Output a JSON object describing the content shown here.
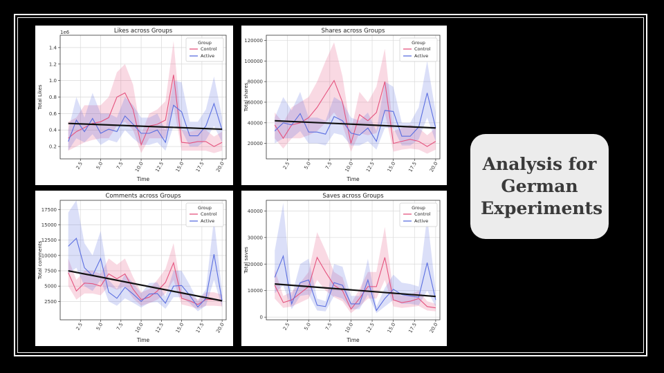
{
  "slide": {
    "title": "Analysis for\nGerman\nExperiments"
  },
  "colors": {
    "control": "#e5537e",
    "active": "#5a6ee0",
    "trend": "#111111"
  },
  "chart_data": [
    {
      "type": "line",
      "title": "Likes across Groups",
      "xlabel": "Time",
      "ylabel": "Total Likes",
      "offset_label": "1e6",
      "xlim": [
        0,
        20.5
      ],
      "ylim": [
        0.05,
        1.55
      ],
      "xticks": [
        2.5,
        5.0,
        7.5,
        10.0,
        12.5,
        15.0,
        17.5,
        20.0
      ],
      "xtick_labels": [
        "2.5",
        "5.0",
        "7.5",
        "10.0",
        "12.5",
        "15.0",
        "17.5",
        "20.0"
      ],
      "yticks": [
        0.2,
        0.4,
        0.6,
        0.8,
        1.0,
        1.2,
        1.4
      ],
      "ytick_labels": [
        "0.2",
        "0.4",
        "0.6",
        "0.8",
        "1.0",
        "1.2",
        "1.4"
      ],
      "grid": true,
      "legend": {
        "title": "Group",
        "position": "top-right"
      },
      "x": [
        1,
        2,
        3,
        4,
        5,
        6,
        7,
        8,
        9,
        10,
        11,
        12,
        13,
        14,
        15,
        16,
        17,
        18,
        19,
        20
      ],
      "series": [
        {
          "name": "Control",
          "color": "#e5537e",
          "values": [
            0.3,
            0.38,
            0.43,
            0.48,
            0.5,
            0.55,
            0.8,
            0.85,
            0.65,
            0.22,
            0.45,
            0.47,
            0.52,
            1.07,
            0.25,
            0.24,
            0.26,
            0.26,
            0.2,
            0.25
          ],
          "lower": [
            0.15,
            0.2,
            0.25,
            0.28,
            0.3,
            0.3,
            0.45,
            0.5,
            0.4,
            0.12,
            0.3,
            0.3,
            0.3,
            0.7,
            0.15,
            0.15,
            0.15,
            0.15,
            0.12,
            0.15
          ],
          "upper": [
            0.5,
            0.55,
            0.7,
            0.7,
            0.7,
            0.8,
            1.1,
            1.2,
            0.95,
            0.35,
            0.6,
            0.65,
            0.75,
            1.48,
            0.4,
            0.38,
            0.4,
            0.4,
            0.32,
            0.38
          ]
        },
        {
          "name": "Active",
          "color": "#5a6ee0",
          "values": [
            0.26,
            0.52,
            0.38,
            0.54,
            0.36,
            0.41,
            0.38,
            0.57,
            0.47,
            0.36,
            0.36,
            0.4,
            0.25,
            0.7,
            0.62,
            0.33,
            0.33,
            0.45,
            0.72,
            0.4
          ],
          "lower": [
            0.15,
            0.3,
            0.25,
            0.35,
            0.22,
            0.28,
            0.25,
            0.4,
            0.3,
            0.22,
            0.22,
            0.25,
            0.15,
            0.45,
            0.4,
            0.2,
            0.2,
            0.28,
            0.45,
            0.25
          ],
          "upper": [
            0.4,
            0.8,
            0.55,
            0.85,
            0.6,
            0.6,
            0.55,
            0.8,
            0.7,
            0.55,
            0.55,
            0.6,
            0.4,
            1.0,
            0.98,
            0.5,
            0.5,
            0.65,
            1.05,
            0.55
          ]
        }
      ],
      "trend": {
        "color": "#111111",
        "from": [
          1,
          0.48
        ],
        "to": [
          20,
          0.41
        ]
      }
    },
    {
      "type": "line",
      "title": "Shares across Groups",
      "xlabel": "Time",
      "ylabel": "Total shares",
      "offset_label": "",
      "xlim": [
        0,
        20.5
      ],
      "ylim": [
        5000,
        125000
      ],
      "xticks": [
        2.5,
        5.0,
        7.5,
        10.0,
        12.5,
        15.0,
        17.5,
        20.0
      ],
      "xtick_labels": [
        "2.5",
        "5.0",
        "7.5",
        "10.0",
        "12.5",
        "15.0",
        "17.5",
        "20.0"
      ],
      "yticks": [
        20000,
        40000,
        60000,
        80000,
        100000,
        120000
      ],
      "ytick_labels": [
        "20000",
        "40000",
        "60000",
        "80000",
        "100000",
        "120000"
      ],
      "grid": true,
      "legend": {
        "title": "Group",
        "position": "top-right"
      },
      "x": [
        1,
        2,
        3,
        4,
        5,
        6,
        7,
        8,
        9,
        10,
        11,
        12,
        13,
        14,
        15,
        16,
        17,
        18,
        19,
        20
      ],
      "series": [
        {
          "name": "Control",
          "color": "#e5537e",
          "values": [
            38000,
            25000,
            38000,
            40000,
            45000,
            55000,
            68000,
            81000,
            60000,
            20000,
            48000,
            42000,
            50000,
            80000,
            20000,
            22000,
            24000,
            22000,
            17000,
            22000
          ],
          "lower": [
            25000,
            15000,
            25000,
            25000,
            28000,
            32000,
            40000,
            50000,
            38000,
            12000,
            30000,
            28000,
            30000,
            50000,
            12000,
            14000,
            15000,
            14000,
            10000,
            14000
          ],
          "upper": [
            50000,
            40000,
            55000,
            60000,
            65000,
            80000,
            100000,
            118000,
            85000,
            32000,
            70000,
            60000,
            75000,
            112000,
            32000,
            35000,
            38000,
            35000,
            28000,
            35000
          ]
        },
        {
          "name": "Active",
          "color": "#5a6ee0",
          "values": [
            32000,
            40000,
            38000,
            49000,
            31000,
            31000,
            29000,
            46000,
            42000,
            30000,
            28000,
            35000,
            22000,
            52000,
            51000,
            27000,
            27000,
            36000,
            69000,
            35000
          ],
          "lower": [
            20000,
            25000,
            25000,
            32000,
            20000,
            20000,
            18000,
            30000,
            28000,
            18000,
            18000,
            22000,
            14000,
            35000,
            35000,
            18000,
            18000,
            24000,
            45000,
            22000
          ],
          "upper": [
            45000,
            65000,
            52000,
            70000,
            45000,
            45000,
            42000,
            65000,
            60000,
            45000,
            42000,
            50000,
            32000,
            80000,
            75000,
            40000,
            40000,
            55000,
            100000,
            50000
          ]
        }
      ],
      "trend": {
        "color": "#111111",
        "from": [
          1,
          42000
        ],
        "to": [
          20,
          35000
        ]
      }
    },
    {
      "type": "line",
      "title": "Comments across Groups",
      "xlabel": "Time",
      "ylabel": "Total comments",
      "offset_label": "",
      "xlim": [
        0,
        20.5
      ],
      "ylim": [
        -500,
        19000
      ],
      "xticks": [
        2.5,
        5.0,
        7.5,
        10.0,
        12.5,
        15.0,
        17.5,
        20.0
      ],
      "xtick_labels": [
        "2.5",
        "5.0",
        "7.5",
        "10.0",
        "12.5",
        "15.0",
        "17.5",
        "20.0"
      ],
      "yticks": [
        2500,
        5000,
        7500,
        10000,
        12500,
        15000,
        17500
      ],
      "ytick_labels": [
        "2500",
        "5000",
        "7500",
        "10000",
        "12500",
        "15000",
        "17500"
      ],
      "grid": true,
      "legend": {
        "title": "Group",
        "position": "top-right"
      },
      "x": [
        1,
        2,
        3,
        4,
        5,
        6,
        7,
        8,
        9,
        10,
        11,
        12,
        13,
        14,
        15,
        16,
        17,
        18,
        19,
        20
      ],
      "series": [
        {
          "name": "Control",
          "color": "#e5537e",
          "values": [
            7200,
            4200,
            5500,
            5400,
            5000,
            7000,
            6200,
            7000,
            4500,
            2800,
            3200,
            4200,
            5600,
            8800,
            3000,
            2600,
            2000,
            2800,
            2800,
            2600
          ],
          "lower": [
            5000,
            2800,
            3800,
            3800,
            3500,
            5000,
            4400,
            5000,
            3000,
            1800,
            2200,
            2800,
            3800,
            6000,
            2000,
            1700,
            1300,
            1800,
            1800,
            1700
          ],
          "upper": [
            9500,
            6000,
            7500,
            7500,
            7000,
            9500,
            8500,
            9500,
            6500,
            4000,
            4500,
            6000,
            7800,
            12000,
            4200,
            3600,
            2800,
            4000,
            4000,
            3600
          ]
        },
        {
          "name": "Active",
          "color": "#5a6ee0",
          "values": [
            11500,
            12800,
            8000,
            6700,
            9500,
            4000,
            3000,
            4800,
            3700,
            2500,
            3700,
            3800,
            2200,
            5000,
            5100,
            3500,
            1600,
            3000,
            10200,
            2600
          ],
          "lower": [
            7000,
            8000,
            5000,
            4200,
            6000,
            2500,
            1800,
            3000,
            2300,
            1500,
            2300,
            2400,
            1300,
            3200,
            3200,
            2200,
            900,
            1800,
            6000,
            1600
          ],
          "upper": [
            17000,
            19000,
            12000,
            10000,
            14000,
            6000,
            4500,
            7000,
            5500,
            3800,
            5500,
            5600,
            3300,
            7500,
            7500,
            5200,
            2500,
            4500,
            16000,
            4000
          ]
        }
      ],
      "trend": {
        "color": "#111111",
        "from": [
          1,
          7500
        ],
        "to": [
          20,
          2600
        ]
      }
    },
    {
      "type": "line",
      "title": "Saves across Groups",
      "xlabel": "Time",
      "ylabel": "Total saves",
      "offset_label": "",
      "xlim": [
        0,
        20.5
      ],
      "ylim": [
        -1000,
        44000
      ],
      "xticks": [
        2.5,
        5.0,
        7.5,
        10.0,
        12.5,
        15.0,
        17.5,
        20.0
      ],
      "xtick_labels": [
        "2.5",
        "5.0",
        "7.5",
        "10.0",
        "12.5",
        "15.0",
        "17.5",
        "20.0"
      ],
      "yticks": [
        0,
        10000,
        20000,
        30000,
        40000
      ],
      "ytick_labels": [
        "0",
        "10000",
        "20000",
        "30000",
        "40000"
      ],
      "grid": true,
      "legend": {
        "title": "Group",
        "position": "top-right"
      },
      "x": [
        1,
        2,
        3,
        4,
        5,
        6,
        7,
        8,
        9,
        10,
        11,
        12,
        13,
        14,
        15,
        16,
        17,
        18,
        19,
        20
      ],
      "series": [
        {
          "name": "Control",
          "color": "#e5537e",
          "values": [
            12000,
            5500,
            6500,
            9000,
            11500,
            22500,
            17000,
            12000,
            10000,
            3000,
            7000,
            11500,
            11500,
            22500,
            6500,
            5500,
            6000,
            7000,
            4000,
            3500
          ],
          "lower": [
            7000,
            3500,
            4000,
            5500,
            7000,
            14000,
            10000,
            7500,
            6000,
            1500,
            4000,
            7000,
            7000,
            14000,
            4000,
            3500,
            3800,
            4200,
            2500,
            2200
          ],
          "upper": [
            18000,
            8000,
            9500,
            13000,
            17000,
            32000,
            25000,
            17000,
            15000,
            5000,
            10500,
            17000,
            17000,
            34000,
            9500,
            8000,
            8500,
            10000,
            6000,
            5000
          ]
        },
        {
          "name": "Active",
          "color": "#5a6ee0",
          "values": [
            15000,
            23000,
            5000,
            13000,
            14000,
            4500,
            4000,
            13000,
            12000,
            5000,
            5000,
            14000,
            2500,
            7000,
            10500,
            8500,
            8000,
            7500,
            20500,
            6500
          ],
          "lower": [
            9000,
            12000,
            3000,
            8000,
            8500,
            2500,
            2200,
            8000,
            7000,
            3000,
            3000,
            8500,
            1500,
            4000,
            6500,
            5000,
            5000,
            4500,
            10000,
            4000
          ],
          "upper": [
            25000,
            43000,
            8000,
            20000,
            22000,
            7000,
            6000,
            20000,
            19000,
            8000,
            8000,
            22000,
            4000,
            11000,
            16000,
            13000,
            12500,
            11500,
            38000,
            10000
          ]
        }
      ],
      "trend": {
        "color": "#111111",
        "from": [
          1,
          12500
        ],
        "to": [
          20,
          7800
        ]
      }
    }
  ]
}
